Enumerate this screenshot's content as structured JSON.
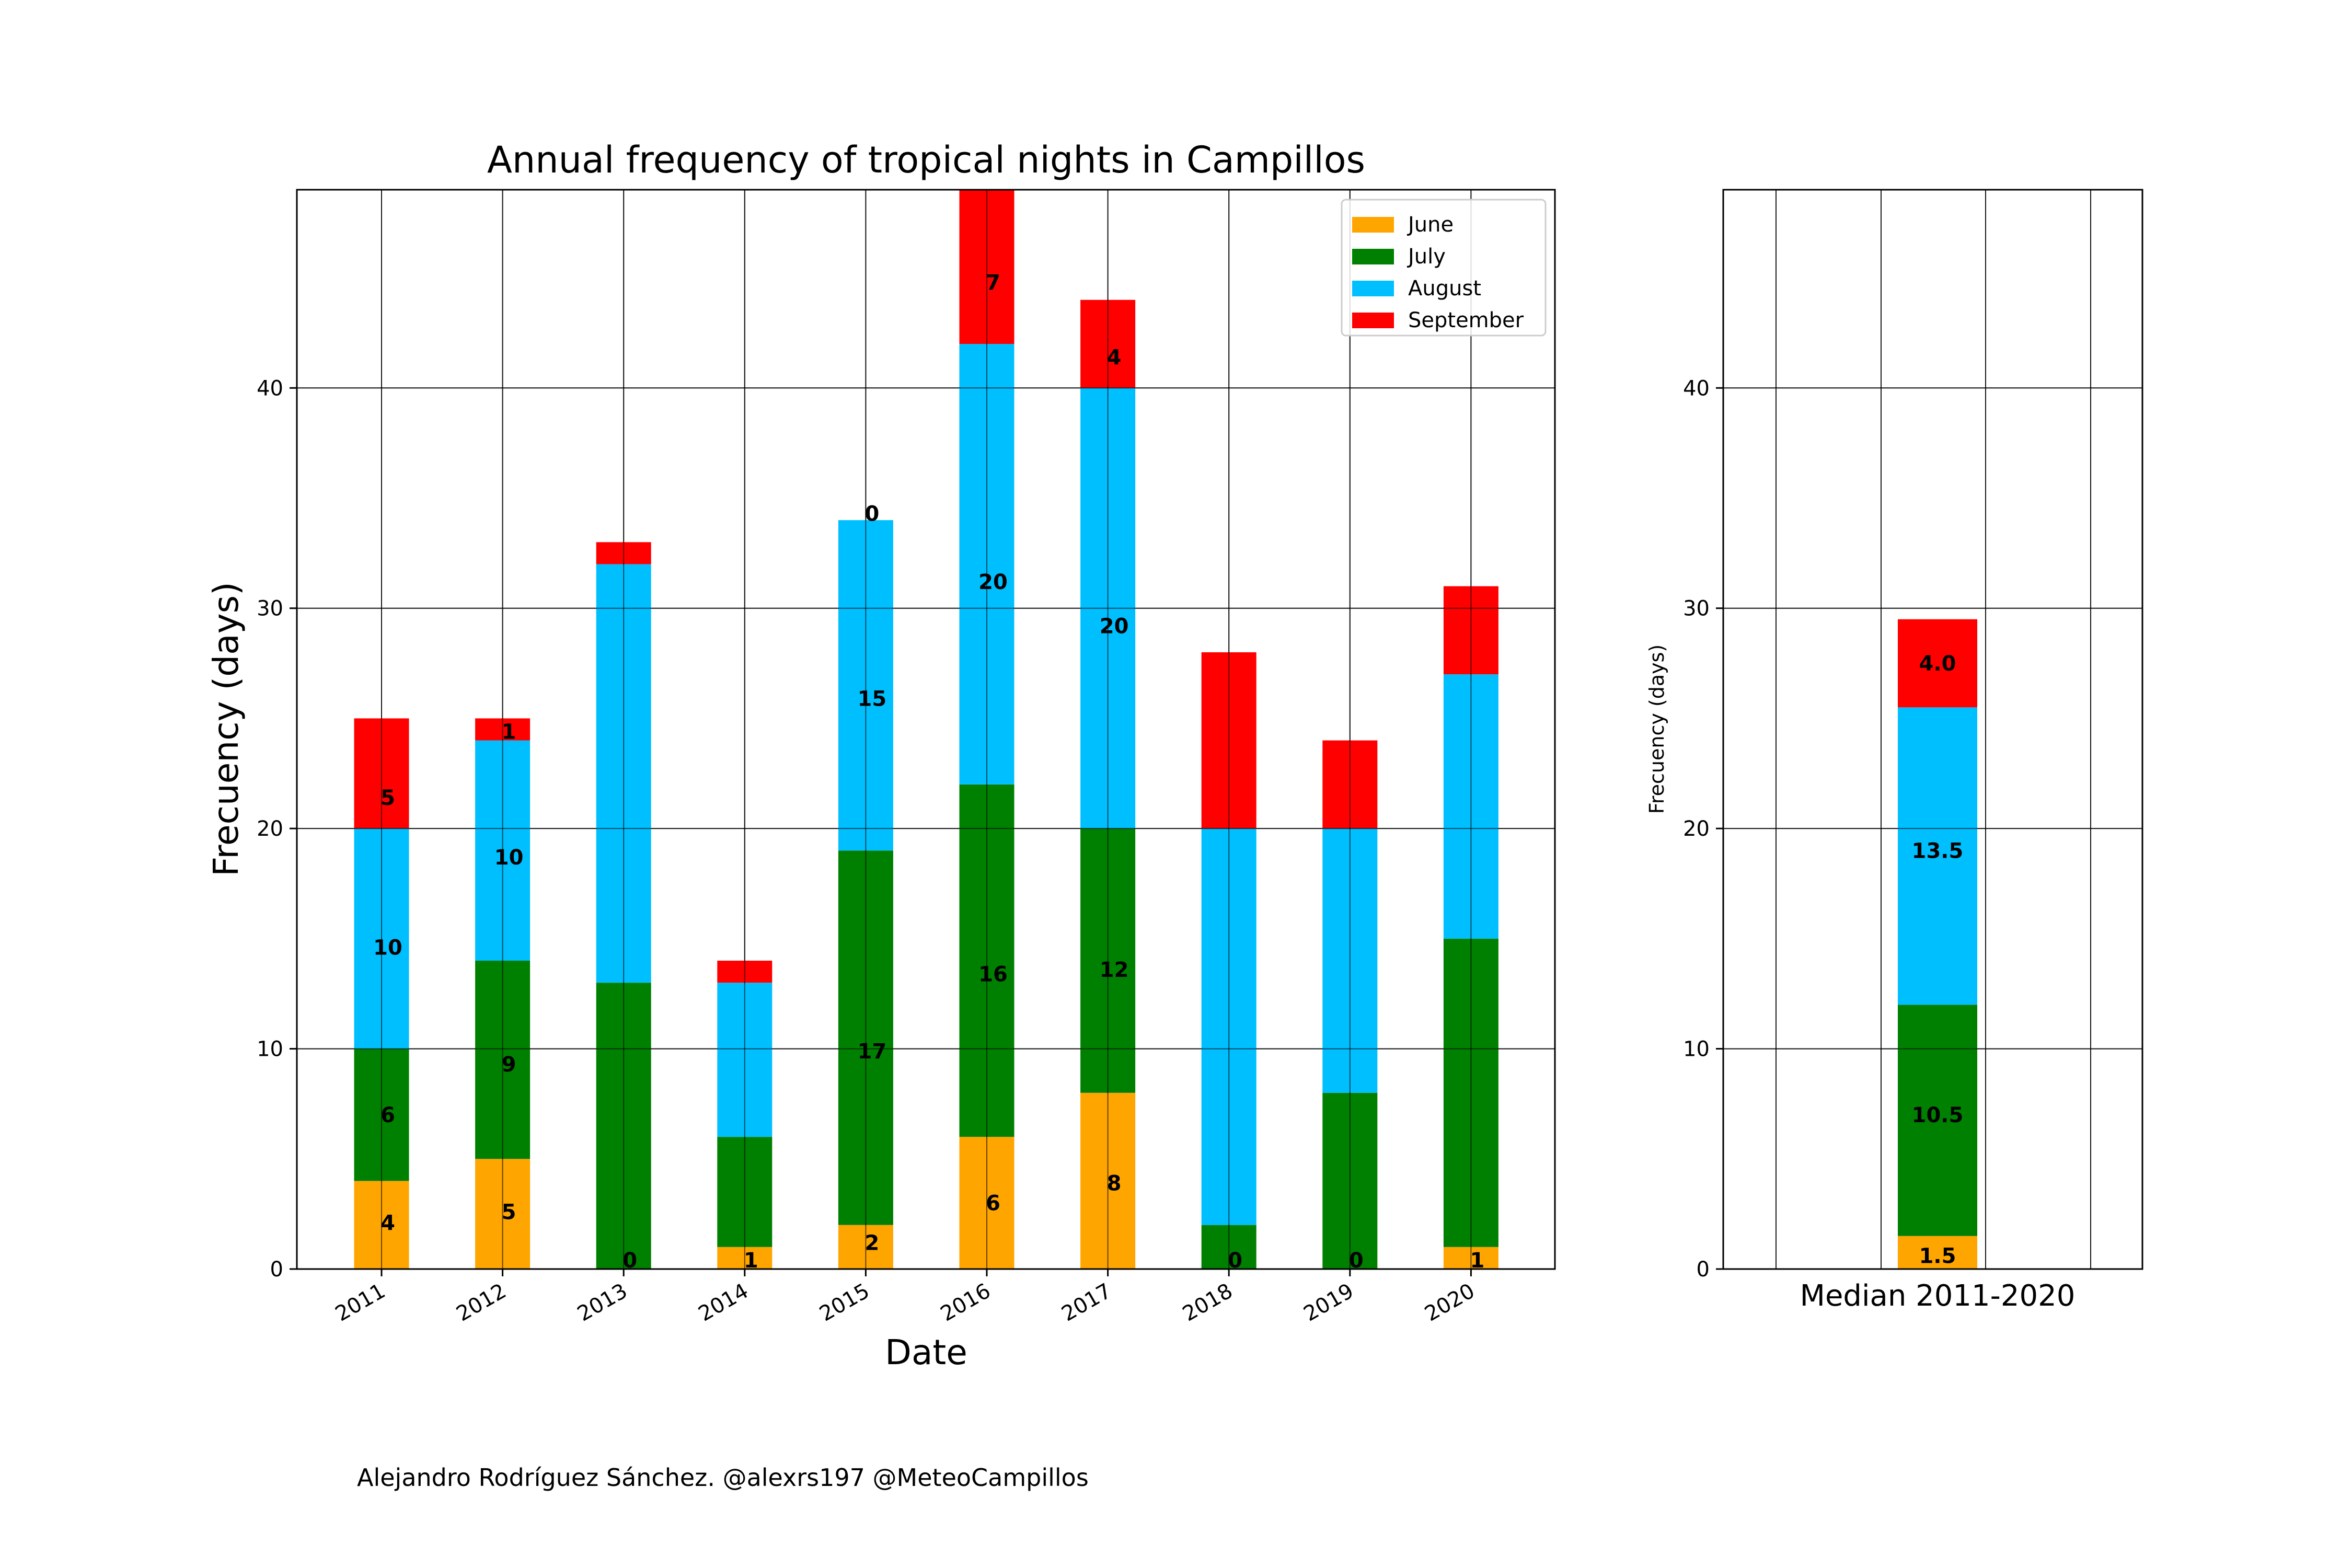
{
  "credit": "Alejandro Rodríguez Sánchez. @alexrs197 @MeteoCampillos",
  "chart_data": [
    {
      "type": "bar",
      "stacked": true,
      "title": "Annual frequency of tropical nights in Campillos",
      "xlabel": "Date",
      "ylabel": "Frecuency (days)",
      "categories": [
        "2011",
        "2012",
        "2013",
        "2014",
        "2015",
        "2016",
        "2017",
        "2018",
        "2019",
        "2020"
      ],
      "yticks": [
        0,
        10,
        20,
        30,
        40
      ],
      "ylim": [
        0,
        49
      ],
      "grid": true,
      "legend_position": "top-right",
      "series": [
        {
          "name": "June",
          "color": "#FFA500",
          "values": [
            4,
            5,
            0,
            1,
            2,
            6,
            8,
            0,
            0,
            1
          ]
        },
        {
          "name": "July",
          "color": "#008000",
          "values": [
            6,
            9,
            13,
            5,
            17,
            16,
            12,
            2,
            8,
            14
          ]
        },
        {
          "name": "August",
          "color": "#00BFFF",
          "values": [
            10,
            10,
            19,
            7,
            15,
            20,
            20,
            18,
            12,
            12
          ]
        },
        {
          "name": "September",
          "color": "#FF0000",
          "values": [
            5,
            1,
            1,
            1,
            0,
            7,
            4,
            8,
            4,
            4
          ]
        }
      ],
      "data_labels": [
        {
          "text": "4",
          "category": "2011",
          "y": 2.1
        },
        {
          "text": "6",
          "category": "2011",
          "y": 7.0
        },
        {
          "text": "10",
          "category": "2011",
          "y": 14.6
        },
        {
          "text": "5",
          "category": "2011",
          "y": 21.4
        },
        {
          "text": "5",
          "category": "2012",
          "y": 2.6
        },
        {
          "text": "9",
          "category": "2012",
          "y": 9.3
        },
        {
          "text": "10",
          "category": "2012",
          "y": 18.7
        },
        {
          "text": "1",
          "category": "2012",
          "y": 24.4
        },
        {
          "text": "0",
          "category": "2013",
          "y": 0.4
        },
        {
          "text": "1",
          "category": "2014",
          "y": 0.4
        },
        {
          "text": "2",
          "category": "2015",
          "y": 1.2
        },
        {
          "text": "17",
          "category": "2015",
          "y": 9.9
        },
        {
          "text": "15",
          "category": "2015",
          "y": 25.9
        },
        {
          "text": "0",
          "category": "2015",
          "y": 34.3
        },
        {
          "text": "6",
          "category": "2016",
          "y": 3.0
        },
        {
          "text": "16",
          "category": "2016",
          "y": 13.4
        },
        {
          "text": "20",
          "category": "2016",
          "y": 31.2
        },
        {
          "text": "7",
          "category": "2016",
          "y": 44.8
        },
        {
          "text": "8",
          "category": "2017",
          "y": 3.9
        },
        {
          "text": "12",
          "category": "2017",
          "y": 13.6
        },
        {
          "text": "20",
          "category": "2017",
          "y": 29.2
        },
        {
          "text": "4",
          "category": "2017",
          "y": 41.4
        },
        {
          "text": "0",
          "category": "2018",
          "y": 0.4
        },
        {
          "text": "0",
          "category": "2019",
          "y": 0.4
        },
        {
          "text": "1",
          "category": "2020",
          "y": 0.4
        }
      ]
    },
    {
      "type": "bar",
      "stacked": true,
      "title": "",
      "xlabel": "",
      "ylabel": "Frecuency (days)",
      "categories": [
        "Median 2011-2020"
      ],
      "yticks": [
        0,
        10,
        20,
        30,
        40
      ],
      "ylim": [
        0,
        49
      ],
      "grid": true,
      "series": [
        {
          "name": "June",
          "color": "#FFA500",
          "values": [
            1.5
          ]
        },
        {
          "name": "July",
          "color": "#008000",
          "values": [
            10.5
          ]
        },
        {
          "name": "August",
          "color": "#00BFFF",
          "values": [
            13.5
          ]
        },
        {
          "name": "September",
          "color": "#FF0000",
          "values": [
            4.0
          ]
        }
      ],
      "data_labels": [
        {
          "text": "1.5",
          "category": "Median 2011-2020",
          "y": 0.6
        },
        {
          "text": "10.5",
          "category": "Median 2011-2020",
          "y": 7.0
        },
        {
          "text": "13.5",
          "category": "Median 2011-2020",
          "y": 19.0
        },
        {
          "text": "4.0",
          "category": "Median 2011-2020",
          "y": 27.5
        }
      ]
    }
  ]
}
